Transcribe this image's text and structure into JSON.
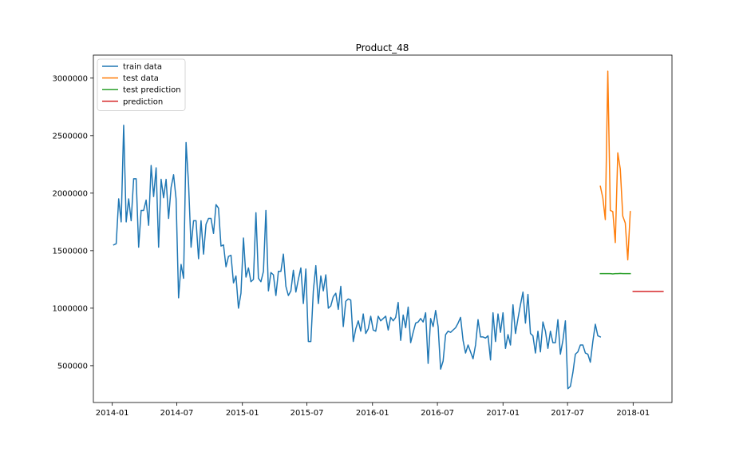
{
  "chart_data": {
    "type": "line",
    "title": "Product_48",
    "xlabel": "",
    "ylabel": "",
    "x_ticks": [
      "2014-01",
      "2014-07",
      "2015-01",
      "2015-07",
      "2016-01",
      "2016-07",
      "2017-01",
      "2017-07",
      "2018-01"
    ],
    "y_ticks": [
      "500000",
      "1000000",
      "1500000",
      "2000000",
      "2500000",
      "3000000"
    ],
    "ylim": [
      180000,
      3200000
    ],
    "legend_position": "upper-left",
    "grid": false,
    "series": [
      {
        "name": "train data",
        "color": "#1f77b4",
        "x_start": "2014-01-05",
        "x_step_days": 7,
        "values": [
          1550000,
          1560000,
          1950000,
          1750000,
          2590000,
          1750000,
          1950000,
          1760000,
          2125000,
          2125000,
          1530000,
          1850000,
          1850000,
          1940000,
          1720000,
          2240000,
          1970000,
          2220000,
          1530000,
          2120000,
          1960000,
          2120000,
          1780000,
          2050000,
          2160000,
          1950000,
          1090000,
          1380000,
          1260000,
          2440000,
          2080000,
          1530000,
          1760000,
          1760000,
          1430000,
          1760000,
          1470000,
          1730000,
          1780000,
          1780000,
          1650000,
          1900000,
          1870000,
          1540000,
          1550000,
          1360000,
          1450000,
          1460000,
          1220000,
          1280000,
          1000000,
          1130000,
          1610000,
          1270000,
          1350000,
          1230000,
          1250000,
          1830000,
          1260000,
          1230000,
          1320000,
          1850000,
          1150000,
          1310000,
          1290000,
          1110000,
          1320000,
          1320000,
          1470000,
          1190000,
          1110000,
          1150000,
          1330000,
          1140000,
          1250000,
          1350000,
          1040000,
          1340000,
          710000,
          710000,
          1150000,
          1370000,
          1040000,
          1280000,
          1150000,
          1290000,
          1000000,
          1020000,
          1100000,
          1130000,
          990000,
          1190000,
          840000,
          1060000,
          1080000,
          1070000,
          710000,
          820000,
          890000,
          800000,
          950000,
          780000,
          820000,
          930000,
          810000,
          800000,
          930000,
          890000,
          910000,
          930000,
          810000,
          920000,
          890000,
          920000,
          1050000,
          720000,
          940000,
          830000,
          1010000,
          700000,
          790000,
          870000,
          880000,
          910000,
          880000,
          960000,
          520000,
          910000,
          840000,
          980000,
          840000,
          470000,
          540000,
          770000,
          800000,
          790000,
          810000,
          830000,
          870000,
          920000,
          720000,
          610000,
          680000,
          620000,
          560000,
          680000,
          900000,
          750000,
          750000,
          740000,
          760000,
          550000,
          960000,
          710000,
          950000,
          790000,
          960000,
          650000,
          770000,
          680000,
          1030000,
          780000,
          910000,
          1030000,
          1140000,
          870000,
          1120000,
          780000,
          760000,
          610000,
          800000,
          620000,
          880000,
          800000,
          650000,
          800000,
          700000,
          700000,
          900000,
          600000,
          720000,
          890000,
          300000,
          320000,
          440000,
          600000,
          620000,
          680000,
          680000,
          610000,
          600000,
          530000,
          710000,
          860000,
          760000,
          750000
        ]
      },
      {
        "name": "test data",
        "color": "#ff7f0e",
        "x_start": "2017-10-01",
        "x_step_days": 7,
        "values": [
          2060000,
          1960000,
          1770000,
          3060000,
          1850000,
          1840000,
          1570000,
          2350000,
          2210000,
          1800000,
          1740000,
          1420000,
          1840000
        ]
      },
      {
        "name": "test prediction",
        "color": "#2ca02c",
        "x_start": "2017-10-01",
        "x_step_days": 7,
        "values": [
          1300000,
          1300000,
          1300000,
          1300000,
          1300000,
          1298000,
          1300000,
          1300000,
          1302000,
          1300000,
          1300000,
          1300000,
          1300000
        ]
      },
      {
        "name": "prediction",
        "color": "#d62728",
        "x_start": "2018-01-01",
        "x_step_days": 7,
        "values": [
          1145000,
          1145000,
          1145000,
          1145000,
          1145000,
          1145000,
          1145000,
          1145000,
          1145000,
          1145000,
          1145000,
          1145000,
          1145000
        ]
      }
    ]
  }
}
